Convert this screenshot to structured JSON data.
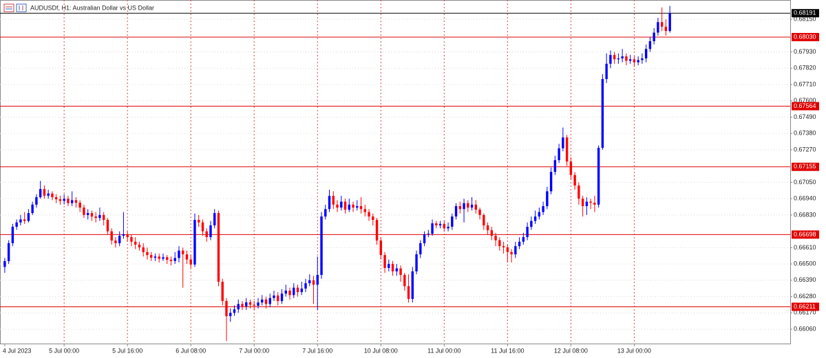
{
  "chart_data": {
    "type": "candlestick",
    "title": "AUDUSDf, H1:  Australian Dollar vs US Dollar",
    "up_color": "#0000ff",
    "down_color": "#ff0000",
    "grid": true,
    "xlim": [
      -1.2,
      198.4
    ],
    "ylim": [
      0.65963,
      0.6828
    ],
    "yticks": [
      {
        "value": 0.6815,
        "label": "0.68150"
      },
      {
        "value": 0.6793,
        "label": "0.67930"
      },
      {
        "value": 0.6782,
        "label": "0.67820"
      },
      {
        "value": 0.6771,
        "label": "0.67710"
      },
      {
        "value": 0.676,
        "label": "0.67600"
      },
      {
        "value": 0.6749,
        "label": "0.67490"
      },
      {
        "value": 0.6738,
        "label": "0.67380"
      },
      {
        "value": 0.6727,
        "label": "0.67270"
      },
      {
        "value": 0.6705,
        "label": "0.67050"
      },
      {
        "value": 0.6694,
        "label": "0.66940"
      },
      {
        "value": 0.6683,
        "label": "0.66830"
      },
      {
        "value": 0.6661,
        "label": "0.66610"
      },
      {
        "value": 0.665,
        "label": "0.66500"
      },
      {
        "value": 0.6639,
        "label": "0.66390"
      },
      {
        "value": 0.6628,
        "label": "0.66280"
      },
      {
        "value": 0.6617,
        "label": "0.66170"
      },
      {
        "value": 0.6606,
        "label": "0.66060"
      }
    ],
    "xticks": [
      {
        "value": 0,
        "label": "4 Jul 2023"
      },
      {
        "value": 15,
        "label": "5 Jul 00:00"
      },
      {
        "value": 31,
        "label": "5 Jul 16:00"
      },
      {
        "value": 47,
        "label": "6 Jul 08:00"
      },
      {
        "value": 63,
        "label": "7 Jul 00:00"
      },
      {
        "value": 79,
        "label": "7 Jul 16:00"
      },
      {
        "value": 95,
        "label": "10 Jul 08:00"
      },
      {
        "value": 111,
        "label": "11 Jul 00:00"
      },
      {
        "value": 127,
        "label": "11 Jul 16:00"
      },
      {
        "value": 143,
        "label": "12 Jul 08:00"
      },
      {
        "value": 159,
        "label": "13 Jul 00:00"
      }
    ],
    "levels": [
      {
        "value": 0.6803,
        "label": "0.68030"
      },
      {
        "value": 0.67564,
        "label": "0.67564"
      },
      {
        "value": 0.67155,
        "label": "0.67155"
      },
      {
        "value": 0.66698,
        "label": "0.66698"
      },
      {
        "value": 0.66211,
        "label": "0.66211"
      }
    ],
    "current_price": {
      "value": 0.68191,
      "label": "0.68191"
    },
    "candles": [
      [
        0.6648,
        0.6654,
        0.6644,
        0.66519
      ],
      [
        0.66519,
        0.6666,
        0.665,
        0.6664
      ],
      [
        0.6664,
        0.6677,
        0.6662,
        0.66751
      ],
      [
        0.66751,
        0.668,
        0.6673,
        0.6678
      ],
      [
        0.6678,
        0.6683,
        0.6676,
        0.668
      ],
      [
        0.668,
        0.6685,
        0.6677,
        0.6679
      ],
      [
        0.6679,
        0.6687,
        0.6678,
        0.66843
      ],
      [
        0.66843,
        0.6692,
        0.6683,
        0.669
      ],
      [
        0.669,
        0.6697,
        0.6688,
        0.6695
      ],
      [
        0.6695,
        0.6706,
        0.6694,
        0.67005
      ],
      [
        0.67005,
        0.6703,
        0.6694,
        0.6696
      ],
      [
        0.6696,
        0.67,
        0.6694,
        0.66975
      ],
      [
        0.66975,
        0.6699,
        0.6693,
        0.6695
      ],
      [
        0.6695,
        0.6697,
        0.6691,
        0.66936
      ],
      [
        0.66936,
        0.6696,
        0.669,
        0.66925
      ],
      [
        0.66925,
        0.6697,
        0.669,
        0.6694
      ],
      [
        0.6694,
        0.6696,
        0.6689,
        0.6691
      ],
      [
        0.6691,
        0.6699,
        0.6689,
        0.6693
      ],
      [
        0.6693,
        0.6695,
        0.6688,
        0.66913
      ],
      [
        0.66913,
        0.6693,
        0.6685,
        0.6688
      ],
      [
        0.6688,
        0.669,
        0.6681,
        0.6683
      ],
      [
        0.6683,
        0.6687,
        0.668,
        0.66843
      ],
      [
        0.66843,
        0.6686,
        0.6679,
        0.6682
      ],
      [
        0.6682,
        0.6685,
        0.6678,
        0.6681
      ],
      [
        0.6681,
        0.6688,
        0.6679,
        0.6683
      ],
      [
        0.6683,
        0.6685,
        0.6676,
        0.66797
      ],
      [
        0.66797,
        0.6681,
        0.667,
        0.6672
      ],
      [
        0.6672,
        0.6674,
        0.6663,
        0.66658
      ],
      [
        0.66658,
        0.6668,
        0.6661,
        0.6664
      ],
      [
        0.6664,
        0.6672,
        0.6662,
        0.6669
      ],
      [
        0.6669,
        0.6685,
        0.6667,
        0.667
      ],
      [
        0.667,
        0.6672,
        0.6665,
        0.66681
      ],
      [
        0.66681,
        0.667,
        0.6662,
        0.6665
      ],
      [
        0.6665,
        0.6668,
        0.666,
        0.6663
      ],
      [
        0.6663,
        0.6665,
        0.6659,
        0.66612
      ],
      [
        0.66612,
        0.6664,
        0.6655,
        0.6658
      ],
      [
        0.6658,
        0.6661,
        0.6653,
        0.6656
      ],
      [
        0.6656,
        0.6658,
        0.6652,
        0.66542
      ],
      [
        0.66542,
        0.6657,
        0.6652,
        0.6655
      ],
      [
        0.6655,
        0.6657,
        0.6651,
        0.66535
      ],
      [
        0.66535,
        0.6657,
        0.6652,
        0.66545
      ],
      [
        0.66545,
        0.6656,
        0.665,
        0.66528
      ],
      [
        0.66528,
        0.6655,
        0.6649,
        0.6652
      ],
      [
        0.6652,
        0.6658,
        0.665,
        0.6654
      ],
      [
        0.6654,
        0.6662,
        0.6651,
        0.6659
      ],
      [
        0.6659,
        0.6661,
        0.6634,
        0.66565
      ],
      [
        0.66565,
        0.6659,
        0.665,
        0.6653
      ],
      [
        0.6653,
        0.6656,
        0.6647,
        0.66496
      ],
      [
        0.66496,
        0.6684,
        0.6648,
        0.66797
      ],
      [
        0.66797,
        0.6683,
        0.6675,
        0.6678
      ],
      [
        0.6678,
        0.668,
        0.6669,
        0.6672
      ],
      [
        0.6672,
        0.6674,
        0.6665,
        0.66681
      ],
      [
        0.66681,
        0.6679,
        0.6666,
        0.6676
      ],
      [
        0.6676,
        0.6687,
        0.6674,
        0.66843
      ],
      [
        0.66843,
        0.6686,
        0.6635,
        0.6638
      ],
      [
        0.6638,
        0.664,
        0.6622,
        0.6625
      ],
      [
        0.6625,
        0.6627,
        0.6598,
        0.66148
      ],
      [
        0.66148,
        0.662,
        0.6611,
        0.6617
      ],
      [
        0.6617,
        0.6622,
        0.6615,
        0.66194
      ],
      [
        0.66194,
        0.6626,
        0.6617,
        0.6623
      ],
      [
        0.6623,
        0.6625,
        0.6619,
        0.66215
      ],
      [
        0.66215,
        0.6627,
        0.6619,
        0.66241
      ],
      [
        0.66241,
        0.6626,
        0.662,
        0.66225
      ],
      [
        0.66225,
        0.6625,
        0.6619,
        0.66218
      ],
      [
        0.66218,
        0.6627,
        0.662,
        0.6624
      ],
      [
        0.6624,
        0.6629,
        0.6622,
        0.6626
      ],
      [
        0.6626,
        0.6628,
        0.662,
        0.6623
      ],
      [
        0.6623,
        0.663,
        0.6621,
        0.6627
      ],
      [
        0.6627,
        0.6632,
        0.6625,
        0.66287
      ],
      [
        0.66287,
        0.6631,
        0.6622,
        0.6625
      ],
      [
        0.6625,
        0.6633,
        0.6623,
        0.663
      ],
      [
        0.663,
        0.6636,
        0.6628,
        0.6632
      ],
      [
        0.6632,
        0.6634,
        0.6626,
        0.6629
      ],
      [
        0.6629,
        0.6637,
        0.6627,
        0.6634
      ],
      [
        0.6634,
        0.6636,
        0.6628,
        0.6631
      ],
      [
        0.6631,
        0.6638,
        0.6629,
        0.66334
      ],
      [
        0.66334,
        0.664,
        0.6631,
        0.6637
      ],
      [
        0.6637,
        0.6643,
        0.6635,
        0.6639
      ],
      [
        0.6639,
        0.6642,
        0.6623,
        0.6636
      ],
      [
        0.6636,
        0.6655,
        0.6619,
        0.66426
      ],
      [
        0.66426,
        0.6685,
        0.664,
        0.6682
      ],
      [
        0.6682,
        0.669,
        0.668,
        0.6687
      ],
      [
        0.6687,
        0.67,
        0.6685,
        0.66959
      ],
      [
        0.66959,
        0.6699,
        0.6687,
        0.669
      ],
      [
        0.669,
        0.6693,
        0.6685,
        0.6688
      ],
      [
        0.6688,
        0.6696,
        0.6686,
        0.6692
      ],
      [
        0.6692,
        0.6694,
        0.6684,
        0.66866
      ],
      [
        0.66866,
        0.6694,
        0.6685,
        0.669
      ],
      [
        0.669,
        0.6692,
        0.6685,
        0.6688
      ],
      [
        0.6688,
        0.6693,
        0.6686,
        0.6689
      ],
      [
        0.6689,
        0.6695,
        0.6684,
        0.6687
      ],
      [
        0.6687,
        0.669,
        0.6682,
        0.6685
      ],
      [
        0.6685,
        0.6687,
        0.6679,
        0.6682
      ],
      [
        0.6682,
        0.6684,
        0.6676,
        0.66797
      ],
      [
        0.66797,
        0.6681,
        0.6663,
        0.66658
      ],
      [
        0.66658,
        0.6668,
        0.6653,
        0.6656
      ],
      [
        0.6656,
        0.6658,
        0.6644,
        0.66473
      ],
      [
        0.66473,
        0.6653,
        0.6645,
        0.665
      ],
      [
        0.665,
        0.6652,
        0.6642,
        0.6645
      ],
      [
        0.6645,
        0.665,
        0.6642,
        0.6647
      ],
      [
        0.6647,
        0.6649,
        0.6638,
        0.66426
      ],
      [
        0.66426,
        0.6644,
        0.6632,
        0.6635
      ],
      [
        0.6635,
        0.6643,
        0.6624,
        0.66264
      ],
      [
        0.66264,
        0.6648,
        0.6624,
        0.6645
      ],
      [
        0.6645,
        0.6659,
        0.6643,
        0.66565
      ],
      [
        0.66565,
        0.6666,
        0.6654,
        0.6664
      ],
      [
        0.6664,
        0.6672,
        0.6662,
        0.667
      ],
      [
        0.667,
        0.6673,
        0.6668,
        0.66704
      ],
      [
        0.66704,
        0.668,
        0.6669,
        0.66774
      ],
      [
        0.66774,
        0.6679,
        0.6674,
        0.6676
      ],
      [
        0.6676,
        0.6679,
        0.6674,
        0.6677
      ],
      [
        0.6677,
        0.6679,
        0.6672,
        0.6674
      ],
      [
        0.6674,
        0.6678,
        0.6672,
        0.66751
      ],
      [
        0.66751,
        0.6684,
        0.6673,
        0.6682
      ],
      [
        0.6682,
        0.6691,
        0.668,
        0.6689
      ],
      [
        0.6689,
        0.6692,
        0.6684,
        0.6687
      ],
      [
        0.6687,
        0.6694,
        0.6678,
        0.6691
      ],
      [
        0.6691,
        0.6693,
        0.6685,
        0.6688
      ],
      [
        0.6688,
        0.6695,
        0.6686,
        0.669
      ],
      [
        0.669,
        0.6693,
        0.6684,
        0.66866
      ],
      [
        0.66866,
        0.6688,
        0.668,
        0.6683
      ],
      [
        0.6683,
        0.6684,
        0.6673,
        0.6676
      ],
      [
        0.6676,
        0.6678,
        0.667,
        0.66727
      ],
      [
        0.66727,
        0.6675,
        0.6666,
        0.6669
      ],
      [
        0.6669,
        0.6671,
        0.6662,
        0.6666
      ],
      [
        0.6666,
        0.6668,
        0.6659,
        0.6662
      ],
      [
        0.6662,
        0.6665,
        0.6657,
        0.66612
      ],
      [
        0.66612,
        0.6663,
        0.6651,
        0.6658
      ],
      [
        0.6658,
        0.666,
        0.6651,
        0.66565
      ],
      [
        0.66565,
        0.6665,
        0.6654,
        0.6662
      ],
      [
        0.6662,
        0.6668,
        0.666,
        0.6665
      ],
      [
        0.6665,
        0.6671,
        0.6663,
        0.66681
      ],
      [
        0.66681,
        0.6678,
        0.6666,
        0.6675
      ],
      [
        0.6675,
        0.6682,
        0.6673,
        0.6679
      ],
      [
        0.6679,
        0.6686,
        0.6677,
        0.6682
      ],
      [
        0.6682,
        0.6688,
        0.668,
        0.6685
      ],
      [
        0.6685,
        0.6692,
        0.6683,
        0.6689
      ],
      [
        0.6689,
        0.6702,
        0.6687,
        0.6699
      ],
      [
        0.6699,
        0.6715,
        0.6697,
        0.67121
      ],
      [
        0.67121,
        0.6723,
        0.671,
        0.672
      ],
      [
        0.672,
        0.6731,
        0.6718,
        0.6728
      ],
      [
        0.6728,
        0.6742,
        0.6726,
        0.67353
      ],
      [
        0.67353,
        0.6737,
        0.6716,
        0.67191
      ],
      [
        0.67191,
        0.6722,
        0.6707,
        0.671
      ],
      [
        0.671,
        0.6712,
        0.67,
        0.67029
      ],
      [
        0.67029,
        0.6705,
        0.669,
        0.6694
      ],
      [
        0.6694,
        0.6696,
        0.6682,
        0.6689
      ],
      [
        0.6689,
        0.6695,
        0.6683,
        0.6692
      ],
      [
        0.6692,
        0.6694,
        0.6687,
        0.66913
      ],
      [
        0.66913,
        0.6696,
        0.6685,
        0.669
      ],
      [
        0.669,
        0.673,
        0.6688,
        0.67283
      ],
      [
        0.67283,
        0.6778,
        0.6727,
        0.67747
      ],
      [
        0.67747,
        0.6792,
        0.6772,
        0.6785
      ],
      [
        0.6785,
        0.6794,
        0.6782,
        0.67909
      ],
      [
        0.67909,
        0.6793,
        0.6785,
        0.6788
      ],
      [
        0.6788,
        0.6792,
        0.6785,
        0.67886
      ],
      [
        0.67886,
        0.6795,
        0.6786,
        0.679
      ],
      [
        0.679,
        0.6792,
        0.6784,
        0.6787
      ],
      [
        0.6787,
        0.6791,
        0.6785,
        0.6788
      ],
      [
        0.6788,
        0.679,
        0.6783,
        0.6786
      ],
      [
        0.6786,
        0.679,
        0.6784,
        0.67875
      ],
      [
        0.67875,
        0.6792,
        0.6785,
        0.67886
      ],
      [
        0.67886,
        0.6798,
        0.6786,
        0.6795
      ],
      [
        0.6795,
        0.6803,
        0.6793,
        0.68002
      ],
      [
        0.68002,
        0.6809,
        0.6798,
        0.6806
      ],
      [
        0.6806,
        0.6816,
        0.6804,
        0.68131
      ],
      [
        0.68131,
        0.6823,
        0.6807,
        0.681
      ],
      [
        0.681,
        0.6815,
        0.6804,
        0.68071
      ],
      [
        0.68071,
        0.6824,
        0.6806,
        0.68191
      ]
    ]
  }
}
